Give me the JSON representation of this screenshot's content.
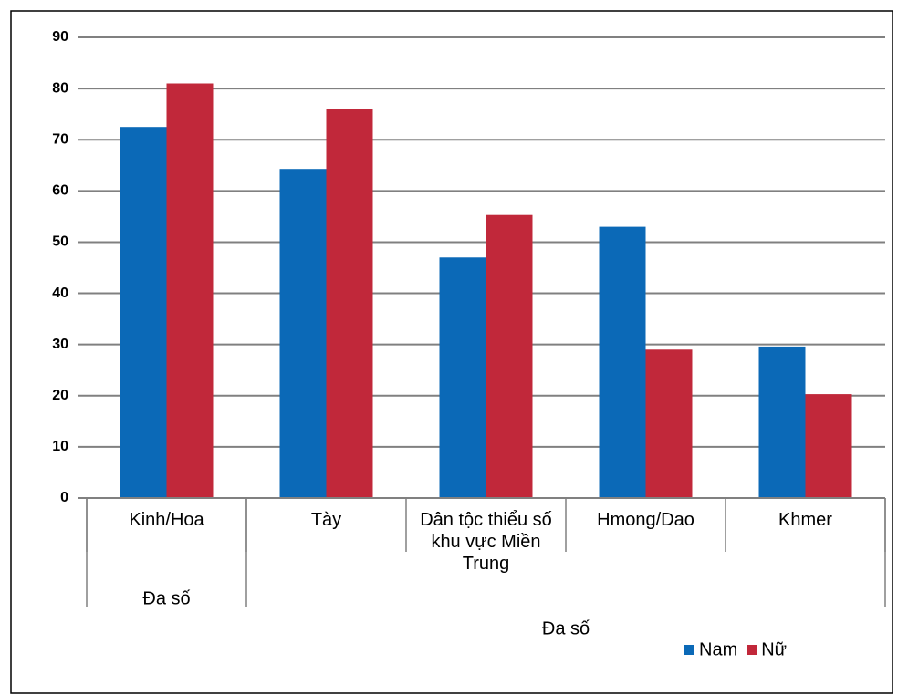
{
  "chart_data": {
    "type": "bar",
    "categories": [
      "Kinh/Hoa",
      "Tày",
      "Dân tộc thiểu số khu vực Miền Trung",
      "Hmong/Dao",
      "Khmer"
    ],
    "groups": [
      {
        "name": "Đa số",
        "size": 1
      },
      {
        "name": "Đa số",
        "size": 4
      }
    ],
    "series": [
      {
        "name": "Nam",
        "color": "#0b69b7",
        "values": [
          72.5,
          64.3,
          47,
          53,
          29.6
        ]
      },
      {
        "name": "Nữ",
        "color": "#c1283a",
        "values": [
          81,
          76,
          55.3,
          29,
          20.3
        ]
      }
    ],
    "ylim": [
      0,
      90
    ],
    "yticks": [
      0,
      10,
      20,
      30,
      40,
      50,
      60,
      70,
      80,
      90
    ],
    "grid": true,
    "legend": "bottom-right"
  }
}
